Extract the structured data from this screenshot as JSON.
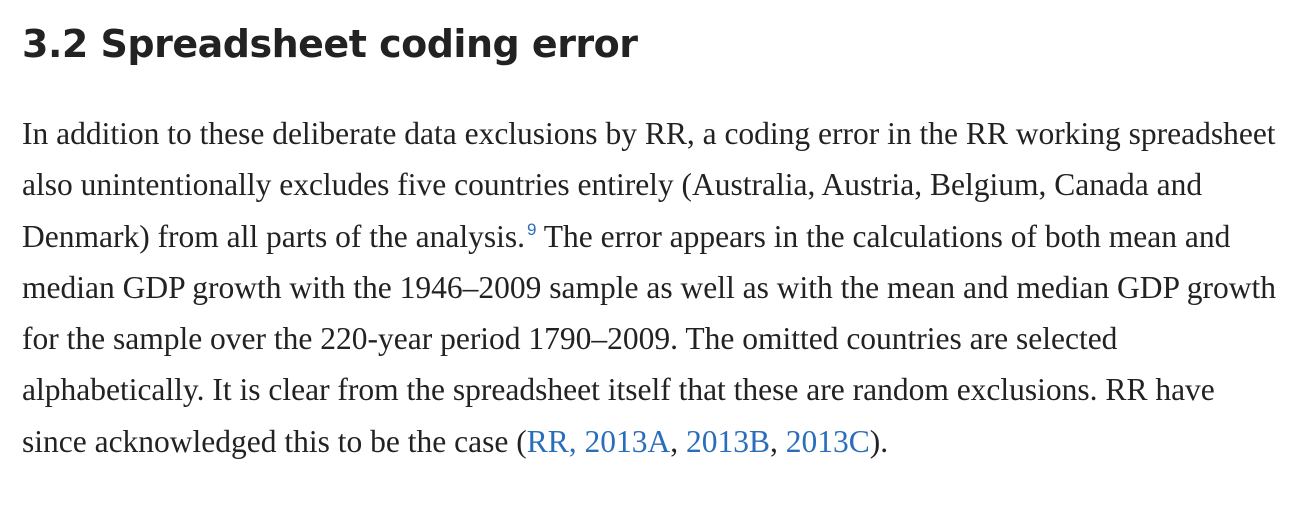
{
  "section": {
    "heading": "3.2 Spreadsheet coding error",
    "paragraph": {
      "text_before_footnote": "In addition to these deliberate data exclusions by RR, a coding error in the RR working spreadsheet also unintentionally excludes five countries entirely (Australia, Austria, Belgium, Canada and Denmark) from all parts of the analysis.",
      "footnote_ref": "9",
      "text_after_footnote": " The error appears in the calculations of both mean and median GDP growth with the 1946–2009 sample as well as with the mean and median GDP growth for the sample over the 220-year period 1790–2009. The omitted countries are selected alphabetically. It is clear from the spreadsheet itself that these are random exclusions. RR have since acknowledged this to be the case (",
      "citations": [
        {
          "label": "RR, 2013A"
        },
        {
          "label": "2013B"
        },
        {
          "label": "2013C"
        }
      ],
      "citation_separator": ", ",
      "text_end": ")."
    }
  },
  "colors": {
    "text": "#222222",
    "link": "#2a6ebb"
  }
}
